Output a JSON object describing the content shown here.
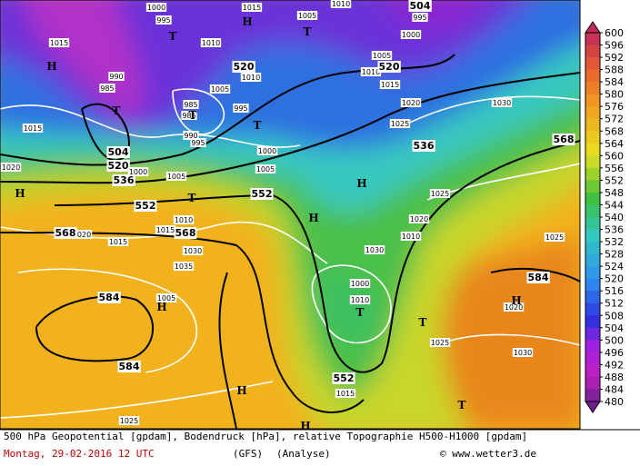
{
  "map": {
    "geopotential_labels": [
      "504",
      "520",
      "536",
      "552",
      "552",
      "568",
      "568",
      "584",
      "584",
      "552",
      "520",
      "520",
      "536",
      "568",
      "584",
      "504"
    ],
    "pressure_labels": [
      "1015",
      "1000",
      "995",
      "1015",
      "1005",
      "1010",
      "1000",
      "995",
      "1010",
      "1005",
      "1010",
      "1010",
      "1015",
      "990",
      "985",
      "1005",
      "985",
      "995",
      "985",
      "1020",
      "1030",
      "1015",
      "990",
      "995",
      "1025",
      "1000",
      "1000",
      "1005",
      "1005",
      "1020",
      "1025",
      "1010",
      "1020",
      "1015",
      "1020",
      "1015",
      "1010",
      "1030",
      "1025",
      "1030",
      "1035",
      "1005",
      "1000",
      "1010",
      "1025",
      "1020",
      "1030",
      "1015",
      "1025"
    ],
    "markers": [
      "H",
      "T",
      "H",
      "T",
      "T",
      "T",
      "T",
      "H",
      "T",
      "H",
      "H",
      "H",
      "T",
      "T",
      "H",
      "H",
      "H",
      "T"
    ]
  },
  "colorbar": {
    "ticks": [
      600,
      596,
      592,
      588,
      584,
      580,
      576,
      572,
      568,
      564,
      560,
      556,
      552,
      548,
      544,
      540,
      536,
      532,
      528,
      524,
      520,
      516,
      512,
      508,
      504,
      500,
      496,
      492,
      488,
      484,
      480
    ]
  },
  "footer": {
    "line1": "500 hPa Geopotential [gpdam], Bodendruck [hPa], relative Topographie H500-H1000 [gpdam]",
    "date": "Montag, 29-02-2016  12 UTC",
    "model": "(GFS)",
    "run": "(Analyse)",
    "credit": "© www.wetter3.de"
  }
}
